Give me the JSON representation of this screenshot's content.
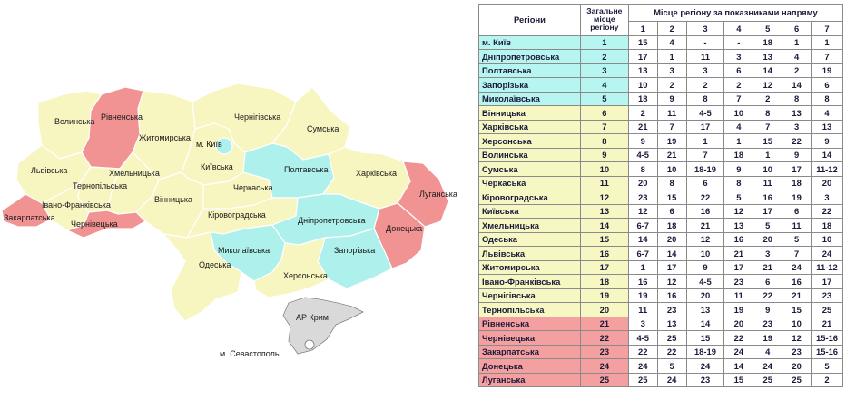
{
  "map": {
    "colors": {
      "leader": "#aef0ec",
      "middle": "#f7f5c0",
      "outsider": "#f19393",
      "crimea": "#d9d9d9",
      "border": "#ffffff",
      "outline": "#7a7a7a"
    },
    "labels": {
      "volynska": "Волинська",
      "rivnenska": "Рівненська",
      "zhytomyrska": "Житомирська",
      "kyiv_city": "м. Київ",
      "chernihivska": "Чернігівська",
      "sumska": "Сумська",
      "lvivska": "Львівська",
      "khmelnytska": "Хмельницька",
      "kyivska": "Київська",
      "poltavska": "Полтавська",
      "kharkivska": "Харківська",
      "ternopilska": "Тернопільська",
      "vinnytska": "Вінницька",
      "cherkaska": "Черкаська",
      "luhanska": "Луганська",
      "zakarpatska": "Закарпатська",
      "ivano_frankivska": "Івано-Франківська",
      "chernivetska": "Чернівецька",
      "kirovohradska": "Кіровоградська",
      "dnipropetrovska": "Дніпропетровська",
      "donetska": "Донецька",
      "mykolaivska": "Миколаївська",
      "zaporizka": "Запорізька",
      "odeska": "Одеська",
      "khersonska": "Херсонська",
      "crimea": "АР Крим",
      "sevastopol": "м. Севастополь"
    }
  },
  "table": {
    "header": {
      "regions": "Регіони",
      "overall": "Загальне місце регіону",
      "directions": "Місце регіону за показниками напряму",
      "cols": [
        "1",
        "2",
        "3",
        "4",
        "5",
        "6",
        "7"
      ]
    },
    "rows": [
      {
        "name": "м. Київ",
        "rank": "1",
        "v": [
          "15",
          "4",
          "-",
          "-",
          "18",
          "1",
          "1"
        ],
        "group": "cyan"
      },
      {
        "name": "Дніпропетровська",
        "rank": "2",
        "v": [
          "17",
          "1",
          "11",
          "3",
          "13",
          "4",
          "7"
        ],
        "group": "cyan"
      },
      {
        "name": "Полтавська",
        "rank": "3",
        "v": [
          "13",
          "3",
          "3",
          "6",
          "14",
          "2",
          "19"
        ],
        "group": "cyan"
      },
      {
        "name": "Запорізька",
        "rank": "4",
        "v": [
          "10",
          "2",
          "2",
          "2",
          "12",
          "14",
          "6"
        ],
        "group": "cyan"
      },
      {
        "name": "Миколаївська",
        "rank": "5",
        "v": [
          "18",
          "9",
          "8",
          "7",
          "2",
          "8",
          "8"
        ],
        "group": "cyan"
      },
      {
        "name": "Вінницька",
        "rank": "6",
        "v": [
          "2",
          "11",
          "4-5",
          "10",
          "8",
          "13",
          "4"
        ],
        "group": "yellow"
      },
      {
        "name": "Харківська",
        "rank": "7",
        "v": [
          "21",
          "7",
          "17",
          "4",
          "7",
          "3",
          "13"
        ],
        "group": "yellow"
      },
      {
        "name": "Херсонська",
        "rank": "8",
        "v": [
          "9",
          "19",
          "1",
          "1",
          "15",
          "22",
          "9"
        ],
        "group": "yellow"
      },
      {
        "name": "Волинська",
        "rank": "9",
        "v": [
          "4-5",
          "21",
          "7",
          "18",
          "1",
          "9",
          "14"
        ],
        "group": "yellow"
      },
      {
        "name": "Сумська",
        "rank": "10",
        "v": [
          "8",
          "10",
          "18-19",
          "9",
          "10",
          "17",
          "11-12"
        ],
        "group": "yellow"
      },
      {
        "name": "Черкаська",
        "rank": "11",
        "v": [
          "20",
          "8",
          "6",
          "8",
          "11",
          "18",
          "20"
        ],
        "group": "yellow"
      },
      {
        "name": "Кіровоградська",
        "rank": "12",
        "v": [
          "23",
          "15",
          "22",
          "5",
          "16",
          "19",
          "3"
        ],
        "group": "yellow"
      },
      {
        "name": "Київська",
        "rank": "13",
        "v": [
          "12",
          "6",
          "16",
          "12",
          "17",
          "6",
          "22"
        ],
        "group": "yellow"
      },
      {
        "name": "Хмельницька",
        "rank": "14",
        "v": [
          "6-7",
          "18",
          "21",
          "13",
          "5",
          "11",
          "18"
        ],
        "group": "yellow"
      },
      {
        "name": "Одеська",
        "rank": "15",
        "v": [
          "14",
          "20",
          "12",
          "16",
          "20",
          "5",
          "10"
        ],
        "group": "yellow"
      },
      {
        "name": "Львівська",
        "rank": "16",
        "v": [
          "6-7",
          "14",
          "10",
          "21",
          "3",
          "7",
          "24"
        ],
        "group": "yellow"
      },
      {
        "name": "Житомирська",
        "rank": "17",
        "v": [
          "1",
          "17",
          "9",
          "17",
          "21",
          "24",
          "11-12"
        ],
        "group": "yellow"
      },
      {
        "name": "Івано-Франківська",
        "rank": "18",
        "v": [
          "16",
          "12",
          "4-5",
          "23",
          "6",
          "16",
          "17"
        ],
        "group": "yellow"
      },
      {
        "name": "Чернігівська",
        "rank": "19",
        "v": [
          "19",
          "16",
          "20",
          "11",
          "22",
          "21",
          "23"
        ],
        "group": "yellow"
      },
      {
        "name": "Тернопільська",
        "rank": "20",
        "v": [
          "11",
          "23",
          "13",
          "19",
          "9",
          "15",
          "25"
        ],
        "group": "yellow"
      },
      {
        "name": "Рівненська",
        "rank": "21",
        "v": [
          "3",
          "13",
          "14",
          "20",
          "23",
          "10",
          "21"
        ],
        "group": "red"
      },
      {
        "name": "Чернівецька",
        "rank": "22",
        "v": [
          "4-5",
          "25",
          "15",
          "22",
          "19",
          "12",
          "15-16"
        ],
        "group": "red"
      },
      {
        "name": "Закарпатська",
        "rank": "23",
        "v": [
          "22",
          "22",
          "18-19",
          "24",
          "4",
          "23",
          "15-16"
        ],
        "group": "red"
      },
      {
        "name": "Донецька",
        "rank": "24",
        "v": [
          "24",
          "5",
          "24",
          "14",
          "24",
          "20",
          "5"
        ],
        "group": "red"
      },
      {
        "name": "Луганська",
        "rank": "25",
        "v": [
          "25",
          "24",
          "23",
          "15",
          "25",
          "25",
          "2"
        ],
        "group": "red"
      }
    ]
  }
}
